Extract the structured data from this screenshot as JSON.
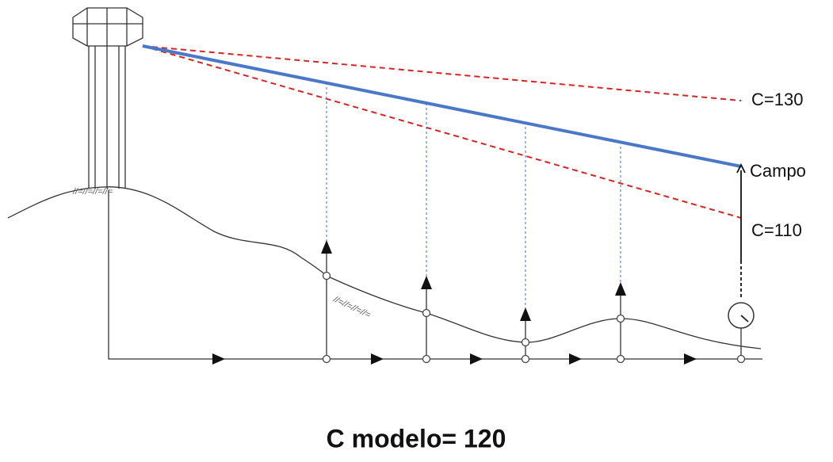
{
  "annotations": [
    "C=130",
    "Campo",
    "C=110"
  ],
  "title": "C modelo= 120"
}
